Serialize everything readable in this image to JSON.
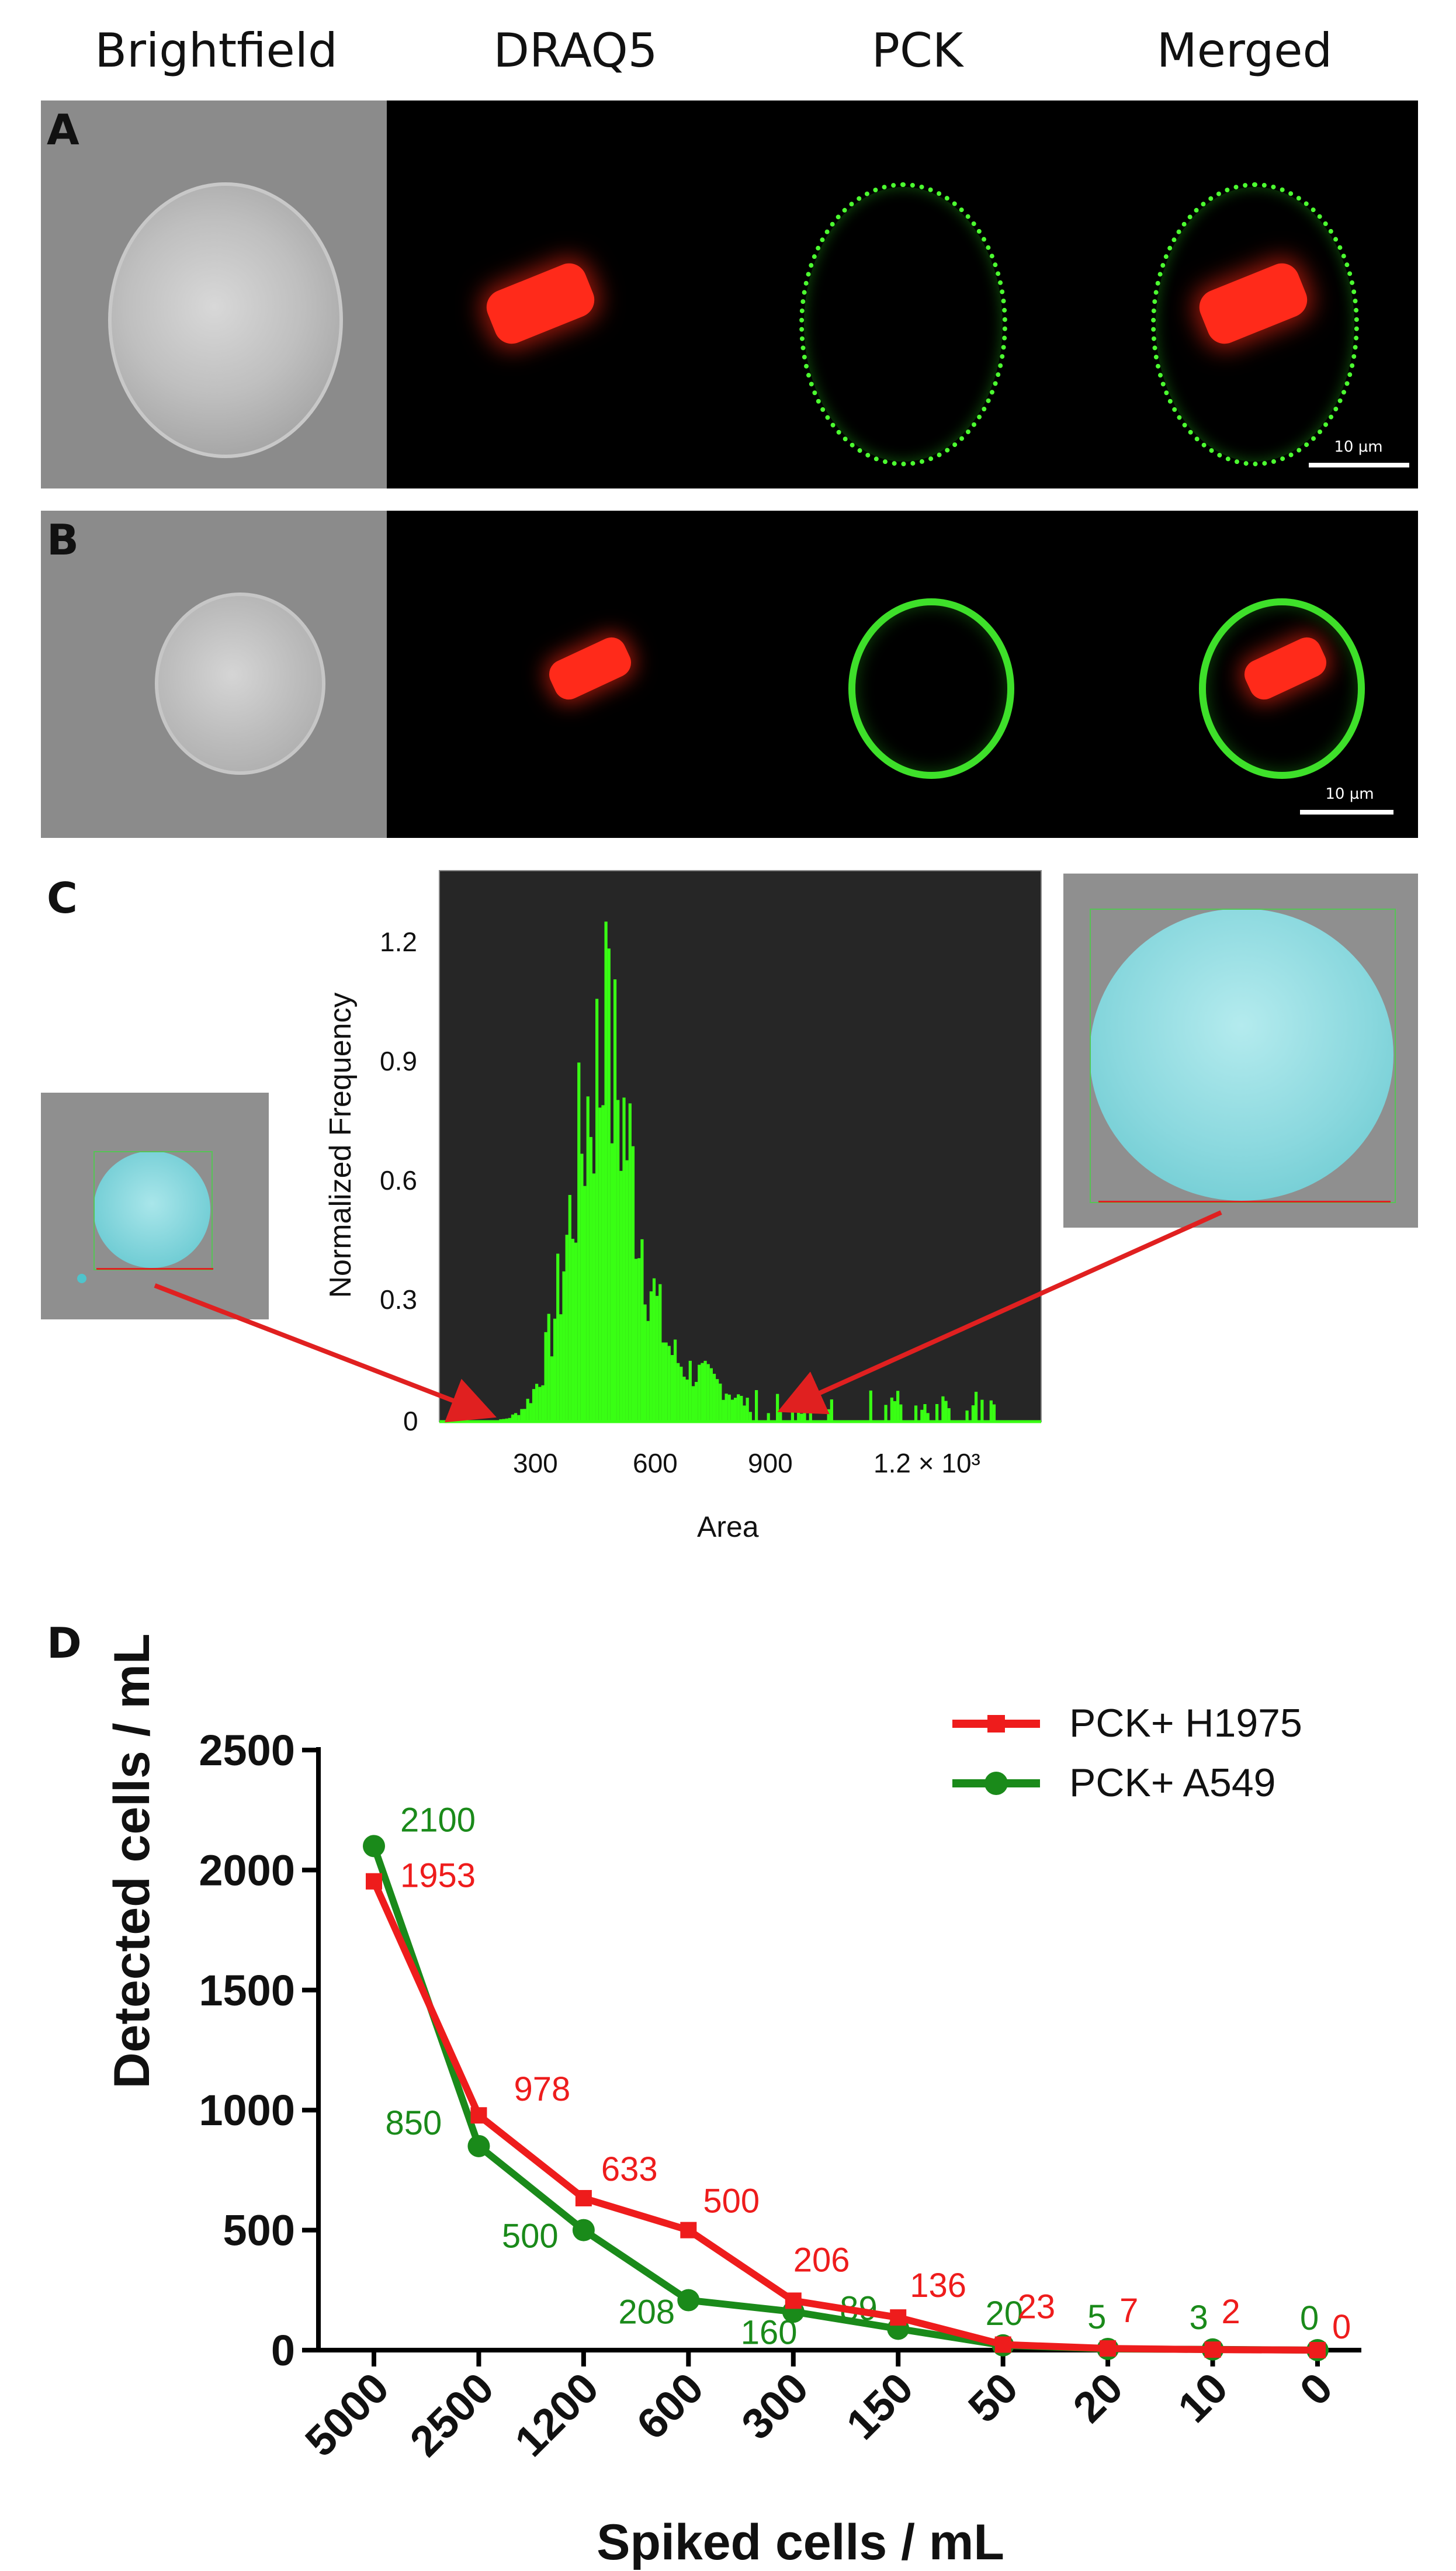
{
  "columns": [
    "Brightfield",
    "DRAQ5",
    "PCK",
    "Merged"
  ],
  "panel_labels": {
    "a": "A",
    "b": "B",
    "c": "C",
    "d": "D"
  },
  "scale_bar_text": "10 µm",
  "histogram": {
    "ylabel": "Normalized Frequency",
    "xlabel": "Area",
    "yticks": [
      "0",
      "0.3",
      "0.6",
      "0.9",
      "1.2"
    ],
    "xticks": [
      "300",
      "600",
      "900",
      "1.2 × 10³"
    ],
    "colors": {
      "bars": "#39ff14",
      "background": "#262626",
      "arrow": "#e02020"
    }
  },
  "chart_data": {
    "type": "line",
    "xlabel": "Spiked cells / mL",
    "ylabel": "Detected cells / mL",
    "categories": [
      "5000",
      "2500",
      "1200",
      "600",
      "300",
      "150",
      "50",
      "20",
      "10",
      "0"
    ],
    "yticks": [
      "0",
      "500",
      "1000",
      "1500",
      "2000",
      "2500"
    ],
    "ylim": [
      0,
      2500
    ],
    "legend_position": "top-right",
    "series": [
      {
        "name": "PCK+ H1975",
        "color": "#ee1c1c",
        "marker": "square",
        "values": [
          1953,
          978,
          633,
          500,
          206,
          136,
          23,
          7,
          2,
          0
        ],
        "labels": [
          "1953",
          "978",
          "633",
          "500",
          "206",
          "136",
          "23",
          "7",
          "2",
          "0"
        ]
      },
      {
        "name": "PCK+ A549",
        "color": "#1a8a1a",
        "marker": "circle",
        "values": [
          2100,
          850,
          500,
          208,
          160,
          89,
          20,
          5,
          3,
          0
        ],
        "labels": [
          "2100",
          "850",
          "500",
          "208",
          "160",
          "89",
          "20",
          "5",
          "3",
          "0"
        ]
      }
    ]
  }
}
